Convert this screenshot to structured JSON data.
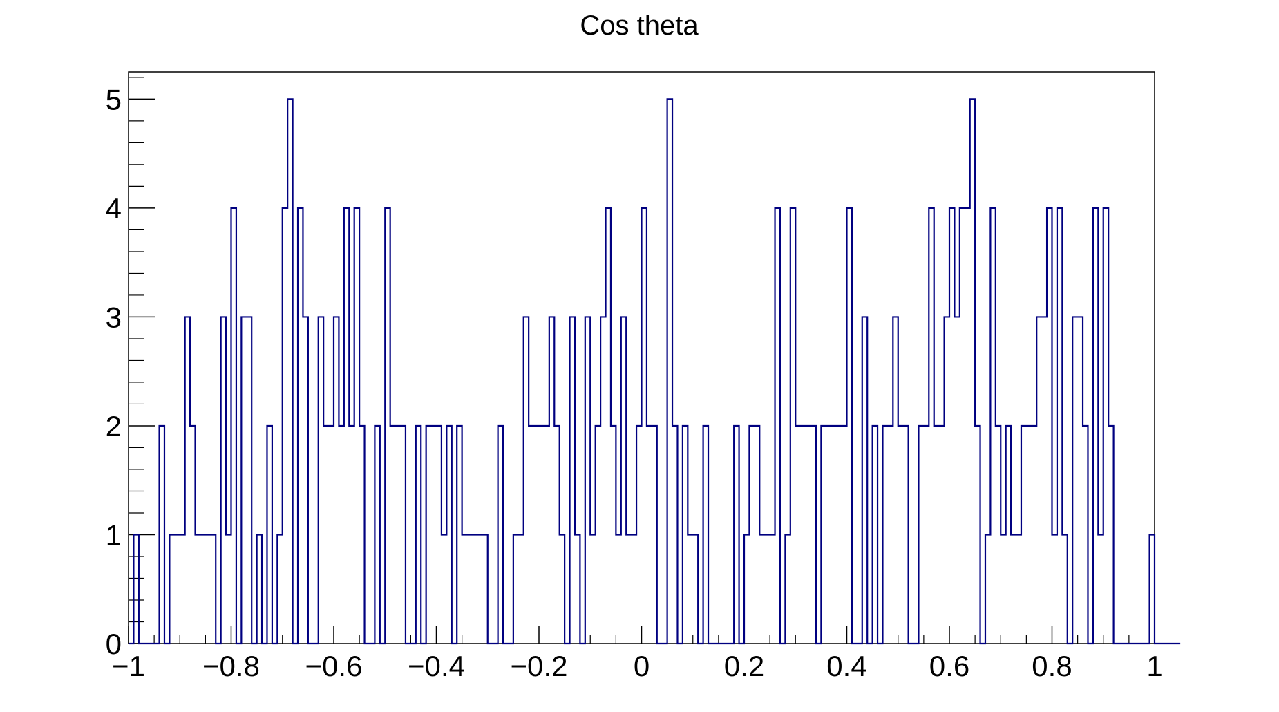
{
  "chart_data": {
    "type": "bar",
    "title": "Cos theta",
    "xlabel": "",
    "ylabel": "",
    "xlim": [
      -1,
      1
    ],
    "ylim": [
      0,
      5.25
    ],
    "x_ticks": [
      -1,
      -0.8,
      -0.6,
      -0.4,
      -0.2,
      0,
      0.2,
      0.4,
      0.6,
      0.8,
      1
    ],
    "x_tick_labels": [
      "−1",
      "−0.8",
      "−0.6",
      "−0.4",
      "−0.2",
      "0",
      "0.2",
      "0.4",
      "0.6",
      "0.8",
      "1"
    ],
    "y_ticks": [
      0,
      1,
      2,
      3,
      4,
      5
    ],
    "y_tick_labels": [
      "0",
      "1",
      "2",
      "3",
      "4",
      "5"
    ],
    "bin_width": 0.01,
    "bins_from": -1,
    "values": [
      0,
      1,
      0,
      0,
      0,
      0,
      2,
      0,
      1,
      1,
      1,
      3,
      2,
      1,
      1,
      1,
      1,
      0,
      3,
      1,
      4,
      0,
      3,
      3,
      0,
      1,
      0,
      2,
      0,
      1,
      4,
      5,
      0,
      4,
      3,
      0,
      0,
      3,
      2,
      2,
      3,
      2,
      4,
      2,
      4,
      2,
      0,
      0,
      2,
      0,
      4,
      2,
      2,
      2,
      0,
      0,
      2,
      0,
      2,
      2,
      2,
      1,
      2,
      0,
      2,
      1,
      1,
      1,
      1,
      1,
      0,
      0,
      2,
      0,
      0,
      1,
      1,
      3,
      2,
      2,
      2,
      2,
      3,
      2,
      1,
      0,
      3,
      1,
      0,
      3,
      1,
      2,
      3,
      4,
      2,
      1,
      3,
      1,
      1,
      2,
      4,
      2,
      2,
      0,
      0,
      5,
      2,
      0,
      2,
      1,
      1,
      0,
      2,
      0,
      0,
      0,
      0,
      0,
      2,
      0,
      1,
      2,
      2,
      1,
      1,
      1,
      4,
      0,
      1,
      4,
      2,
      2,
      2,
      2,
      0,
      2,
      2,
      2,
      2,
      2,
      4,
      0,
      0,
      3,
      0,
      2,
      0,
      2,
      2,
      3,
      2,
      2,
      0,
      0,
      2,
      2,
      4,
      2,
      2,
      3,
      4,
      3,
      4,
      4,
      5,
      2,
      0,
      1,
      4,
      2,
      1,
      2,
      1,
      1,
      2,
      2,
      2,
      3,
      3,
      4,
      1,
      4,
      1,
      0,
      3,
      3,
      2,
      0,
      4,
      1,
      4,
      2,
      0,
      0,
      0,
      0,
      0,
      0,
      0,
      1,
      0,
      0,
      0,
      0,
      0
    ],
    "grid": false,
    "legend": "none",
    "line_color": "#000080"
  }
}
